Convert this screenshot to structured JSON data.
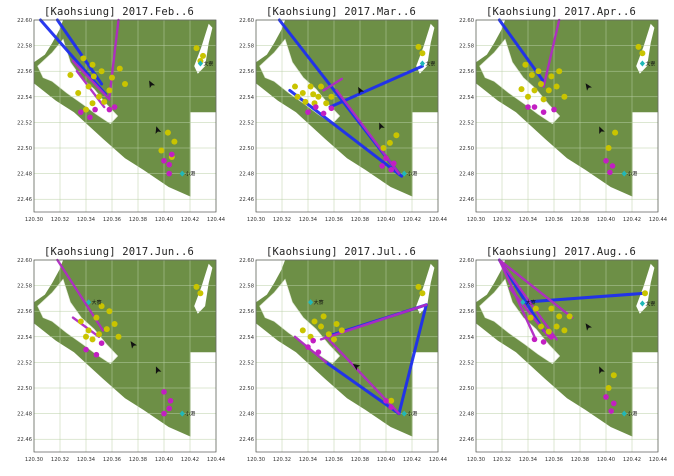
{
  "figure": {
    "city": "Kaohsiung",
    "colors": {
      "land": "#6d8f46",
      "land_light": "#7c9d55",
      "water": "#ffffff",
      "grid": "#b9cfa6",
      "frame": "#555555",
      "station_dot": "#c9c400",
      "station_dot_magenta": "#c21fc2",
      "line_blue": "#1e2ff0",
      "line_magenta": "#b02bc4",
      "site_marker": "#21b8b8",
      "arrow": "#111111"
    },
    "site_labels": [
      "大寮",
      "大寮",
      "小港"
    ]
  },
  "chart_data": [
    {
      "type": "scatter",
      "title": "[Kaohsiung] 2017.Feb..6",
      "xlim": [
        120.3,
        120.44
      ],
      "ylim": [
        22.45,
        22.6
      ],
      "xticks": [
        "120.30",
        "120.32",
        "120.34",
        "120.36",
        "120.38",
        "120.40",
        "120.42",
        "120.44"
      ],
      "yticks": [
        "22.60",
        "22.58",
        "22.56",
        "22.54",
        "22.52",
        "22.50",
        "22.48",
        "22.46"
      ],
      "grid": true,
      "lines": [
        {
          "color": "blue",
          "from": [
            120.305,
            22.6
          ],
          "to": [
            120.355,
            22.542
          ]
        },
        {
          "color": "blue",
          "from": [
            120.318,
            22.6
          ],
          "to": [
            120.352,
            22.55
          ]
        },
        {
          "color": "magenta",
          "from": [
            120.365,
            22.6
          ],
          "to": [
            120.358,
            22.54
          ]
        },
        {
          "color": "magenta",
          "from": [
            120.33,
            22.568
          ],
          "to": [
            120.358,
            22.538
          ]
        },
        {
          "color": "magenta",
          "from": [
            120.333,
            22.56
          ],
          "to": [
            120.354,
            22.532
          ]
        }
      ],
      "points_yellow": [
        [
          120.338,
          22.57
        ],
        [
          120.345,
          22.565
        ],
        [
          120.352,
          22.56
        ],
        [
          120.36,
          22.555
        ],
        [
          120.366,
          22.562
        ],
        [
          120.37,
          22.55
        ],
        [
          120.358,
          22.545
        ],
        [
          120.35,
          22.54
        ],
        [
          120.345,
          22.535
        ],
        [
          120.34,
          22.53
        ],
        [
          120.334,
          22.543
        ],
        [
          120.328,
          22.557
        ],
        [
          120.342,
          22.548
        ],
        [
          120.346,
          22.556
        ],
        [
          120.354,
          22.536
        ],
        [
          120.403,
          22.512
        ],
        [
          120.408,
          22.505
        ],
        [
          120.398,
          22.498
        ],
        [
          120.406,
          22.493
        ],
        [
          120.43,
          22.572
        ],
        [
          120.425,
          22.578
        ],
        [
          120.428,
          22.568
        ]
      ],
      "points_magenta": [
        [
          120.347,
          22.53
        ],
        [
          120.358,
          22.53
        ],
        [
          120.362,
          22.532
        ],
        [
          120.343,
          22.524
        ],
        [
          120.336,
          22.528
        ],
        [
          120.4,
          22.49
        ],
        [
          120.404,
          22.487
        ],
        [
          120.406,
          22.495
        ],
        [
          120.404,
          22.48
        ]
      ],
      "arrows": [
        [
          120.395,
          22.514,
          0.4
        ],
        [
          120.39,
          22.55,
          0.2
        ]
      ],
      "sites": [
        [
          120.428,
          22.566,
          "大寮"
        ],
        [
          120.414,
          22.48,
          "小港"
        ]
      ]
    },
    {
      "type": "scatter",
      "title": "[Kaohsiung] 2017.Mar..6",
      "xlim": [
        120.3,
        120.44
      ],
      "ylim": [
        22.45,
        22.6
      ],
      "xticks": [
        "120.30",
        "120.32",
        "120.34",
        "120.36",
        "120.38",
        "120.40",
        "120.42",
        "120.44"
      ],
      "yticks": [
        "22.60",
        "22.58",
        "22.56",
        "22.54",
        "22.52",
        "22.50",
        "22.48",
        "22.46"
      ],
      "grid": true,
      "lines": [
        {
          "color": "blue",
          "from": [
            120.428,
            22.564
          ],
          "to": [
            120.357,
            22.532
          ]
        },
        {
          "color": "blue",
          "from": [
            120.318,
            22.6
          ],
          "to": [
            120.41,
            22.48
          ]
        },
        {
          "color": "blue",
          "from": [
            120.326,
            22.545
          ],
          "to": [
            120.412,
            22.478
          ]
        },
        {
          "color": "magenta",
          "from": [
            120.362,
            22.545
          ],
          "to": [
            120.41,
            22.48
          ]
        },
        {
          "color": "magenta",
          "from": [
            120.352,
            22.545
          ],
          "to": [
            120.366,
            22.554
          ]
        }
      ],
      "points_yellow": [
        [
          120.336,
          22.543
        ],
        [
          120.342,
          22.548
        ],
        [
          120.348,
          22.54
        ],
        [
          120.354,
          22.535
        ],
        [
          120.345,
          22.535
        ],
        [
          120.338,
          22.536
        ],
        [
          120.332,
          22.54
        ],
        [
          120.35,
          22.548
        ],
        [
          120.358,
          22.54
        ],
        [
          120.33,
          22.548
        ],
        [
          120.344,
          22.542
        ],
        [
          120.408,
          22.51
        ],
        [
          120.403,
          22.504
        ],
        [
          120.398,
          22.5
        ],
        [
          120.428,
          22.574
        ],
        [
          120.425,
          22.579
        ]
      ],
      "points_magenta": [
        [
          120.346,
          22.532
        ],
        [
          120.352,
          22.527
        ],
        [
          120.34,
          22.528
        ],
        [
          120.358,
          22.531
        ],
        [
          120.4,
          22.492
        ],
        [
          120.406,
          22.488
        ],
        [
          120.404,
          22.483
        ],
        [
          120.397,
          22.486
        ]
      ],
      "arrows": [
        [
          120.396,
          22.517,
          0.3
        ],
        [
          120.38,
          22.545,
          0.2
        ]
      ],
      "sites": [
        [
          120.428,
          22.566,
          "大寮"
        ],
        [
          120.414,
          22.48,
          "小港"
        ]
      ]
    },
    {
      "type": "scatter",
      "title": "[Kaohsiung] 2017.Apr..6",
      "xlim": [
        120.3,
        120.44
      ],
      "ylim": [
        22.45,
        22.6
      ],
      "xticks": [
        "120.30",
        "120.32",
        "120.34",
        "120.36",
        "120.38",
        "120.40",
        "120.42",
        "120.44"
      ],
      "yticks": [
        "22.60",
        "22.58",
        "22.56",
        "22.54",
        "22.52",
        "22.50",
        "22.48",
        "22.46"
      ],
      "grid": true,
      "lines": [
        {
          "color": "blue",
          "from": [
            120.318,
            22.6
          ],
          "to": [
            120.352,
            22.552
          ]
        },
        {
          "color": "magenta",
          "from": [
            120.364,
            22.6
          ],
          "to": [
            120.352,
            22.548
          ]
        }
      ],
      "points_yellow": [
        [
          120.338,
          22.565
        ],
        [
          120.343,
          22.557
        ],
        [
          120.35,
          22.55
        ],
        [
          120.356,
          22.545
        ],
        [
          120.362,
          22.548
        ],
        [
          120.368,
          22.54
        ],
        [
          120.345,
          22.545
        ],
        [
          120.34,
          22.54
        ],
        [
          120.335,
          22.546
        ],
        [
          120.352,
          22.538
        ],
        [
          120.358,
          22.556
        ],
        [
          120.364,
          22.56
        ],
        [
          120.348,
          22.56
        ],
        [
          120.407,
          22.512
        ],
        [
          120.402,
          22.5
        ],
        [
          120.428,
          22.574
        ],
        [
          120.425,
          22.579
        ]
      ],
      "points_magenta": [
        [
          120.345,
          22.532
        ],
        [
          120.352,
          22.528
        ],
        [
          120.36,
          22.53
        ],
        [
          120.34,
          22.532
        ],
        [
          120.4,
          22.49
        ],
        [
          120.405,
          22.486
        ],
        [
          120.403,
          22.481
        ]
      ],
      "arrows": [
        [
          120.396,
          22.514,
          0.3
        ],
        [
          120.386,
          22.548,
          0.1
        ]
      ],
      "sites": [
        [
          120.428,
          22.566,
          "大寮"
        ],
        [
          120.414,
          22.48,
          "小港"
        ]
      ]
    },
    {
      "type": "scatter",
      "title": "[Kaohsiung] 2017.Jun..6",
      "xlim": [
        120.3,
        120.44
      ],
      "ylim": [
        22.45,
        22.6
      ],
      "xticks": [
        "120.30",
        "120.32",
        "120.34",
        "120.36",
        "120.38",
        "120.40",
        "120.42",
        "120.44"
      ],
      "yticks": [
        "22.60",
        "22.58",
        "22.56",
        "22.54",
        "22.52",
        "22.50",
        "22.48",
        "22.46"
      ],
      "grid": true,
      "lines": [
        {
          "color": "magenta",
          "from": [
            120.318,
            22.6
          ],
          "to": [
            120.353,
            22.545
          ]
        },
        {
          "color": "magenta",
          "from": [
            120.33,
            22.555
          ],
          "to": [
            120.35,
            22.54
          ]
        }
      ],
      "points_yellow": [
        [
          120.336,
          22.552
        ],
        [
          120.342,
          22.545
        ],
        [
          120.35,
          22.542
        ],
        [
          120.356,
          22.546
        ],
        [
          120.362,
          22.55
        ],
        [
          120.345,
          22.538
        ],
        [
          120.34,
          22.54
        ],
        [
          120.365,
          22.54
        ],
        [
          120.348,
          22.555
        ],
        [
          120.358,
          22.56
        ],
        [
          120.352,
          22.564
        ],
        [
          120.428,
          22.574
        ],
        [
          120.425,
          22.579
        ]
      ],
      "points_magenta": [
        [
          120.34,
          22.53
        ],
        [
          120.348,
          22.526
        ],
        [
          120.352,
          22.535
        ],
        [
          120.4,
          22.497
        ],
        [
          120.405,
          22.49
        ],
        [
          120.404,
          22.484
        ],
        [
          120.4,
          22.48
        ]
      ],
      "arrows": [
        [
          120.395,
          22.514,
          0.3
        ],
        [
          120.376,
          22.534,
          0.1
        ]
      ],
      "sites": [
        [
          120.342,
          22.567,
          "大寮"
        ],
        [
          120.414,
          22.48,
          "小港"
        ]
      ]
    },
    {
      "type": "scatter",
      "title": "[Kaohsiung] 2017.Jul..6",
      "xlim": [
        120.3,
        120.44
      ],
      "ylim": [
        22.45,
        22.6
      ],
      "xticks": [
        "120.30",
        "120.32",
        "120.34",
        "120.36",
        "120.38",
        "120.40",
        "120.42",
        "120.44"
      ],
      "yticks": [
        "22.60",
        "22.58",
        "22.56",
        "22.54",
        "22.52",
        "22.50",
        "22.48",
        "22.46"
      ],
      "grid": true,
      "lines": [
        {
          "color": "blue",
          "from": [
            120.431,
            22.565
          ],
          "to": [
            120.354,
            22.54
          ]
        },
        {
          "color": "blue",
          "from": [
            120.431,
            22.565
          ],
          "to": [
            120.41,
            22.48
          ]
        },
        {
          "color": "blue",
          "from": [
            120.354,
            22.52
          ],
          "to": [
            120.41,
            22.48
          ]
        },
        {
          "color": "magenta",
          "from": [
            120.431,
            22.565
          ],
          "to": [
            120.35,
            22.538
          ]
        },
        {
          "color": "magenta",
          "from": [
            120.33,
            22.54
          ],
          "to": [
            120.354,
            22.52
          ]
        },
        {
          "color": "magenta",
          "from": [
            120.354,
            22.54
          ],
          "to": [
            120.41,
            22.48
          ]
        }
      ],
      "points_yellow": [
        [
          120.336,
          22.545
        ],
        [
          120.342,
          22.54
        ],
        [
          120.35,
          22.548
        ],
        [
          120.356,
          22.542
        ],
        [
          120.362,
          22.55
        ],
        [
          120.36,
          22.538
        ],
        [
          120.345,
          22.552
        ],
        [
          120.352,
          22.556
        ],
        [
          120.366,
          22.545
        ],
        [
          120.404,
          22.49
        ],
        [
          120.428,
          22.574
        ],
        [
          120.425,
          22.579
        ]
      ],
      "points_magenta": [
        [
          120.34,
          22.532
        ],
        [
          120.348,
          22.528
        ],
        [
          120.344,
          22.537
        ],
        [
          120.4,
          22.49
        ],
        [
          120.404,
          22.485
        ]
      ],
      "arrows": [
        [
          120.377,
          22.517,
          -0.25
        ]
      ],
      "sites": [
        [
          120.342,
          22.567,
          "大寮"
        ],
        [
          120.414,
          22.48,
          "小港"
        ]
      ]
    },
    {
      "type": "scatter",
      "title": "[Kaohsiung] 2017.Aug..6",
      "xlim": [
        120.3,
        120.44
      ],
      "ylim": [
        22.45,
        22.6
      ],
      "xticks": [
        "120.30",
        "120.32",
        "120.34",
        "120.36",
        "120.38",
        "120.40",
        "120.42",
        "120.44"
      ],
      "yticks": [
        "22.60",
        "22.58",
        "22.56",
        "22.54",
        "22.52",
        "22.50",
        "22.48",
        "22.46"
      ],
      "grid": true,
      "lines": [
        {
          "color": "blue",
          "from": [
            120.318,
            22.6
          ],
          "to": [
            120.352,
            22.545
          ]
        },
        {
          "color": "blue",
          "from": [
            120.336,
            22.567
          ],
          "to": [
            120.43,
            22.574
          ]
        },
        {
          "color": "magenta",
          "from": [
            120.318,
            22.6
          ],
          "to": [
            120.345,
            22.54
          ]
        },
        {
          "color": "magenta",
          "from": [
            120.318,
            22.6
          ],
          "to": [
            120.362,
            22.538
          ]
        },
        {
          "color": "magenta",
          "from": [
            120.318,
            22.6
          ],
          "to": [
            120.374,
            22.555
          ]
        },
        {
          "color": "magenta",
          "from": [
            120.326,
            22.578
          ],
          "to": [
            120.356,
            22.54
          ]
        }
      ],
      "points_yellow": [
        [
          120.342,
          22.555
        ],
        [
          120.35,
          22.548
        ],
        [
          120.356,
          22.544
        ],
        [
          120.362,
          22.548
        ],
        [
          120.368,
          22.545
        ],
        [
          120.364,
          22.556
        ],
        [
          120.372,
          22.556
        ],
        [
          120.346,
          22.562
        ],
        [
          120.358,
          22.562
        ],
        [
          120.406,
          22.51
        ],
        [
          120.402,
          22.5
        ],
        [
          120.43,
          22.574
        ]
      ],
      "points_magenta": [
        [
          120.345,
          22.538
        ],
        [
          120.352,
          22.536
        ],
        [
          120.358,
          22.54
        ],
        [
          120.4,
          22.493
        ],
        [
          120.406,
          22.488
        ],
        [
          120.404,
          22.482
        ]
      ],
      "arrows": [
        [
          120.396,
          22.514,
          0.3
        ],
        [
          120.386,
          22.548,
          0.1
        ]
      ],
      "sites": [
        [
          120.336,
          22.567,
          "大寮"
        ],
        [
          120.428,
          22.566,
          "大寮"
        ],
        [
          120.414,
          22.48,
          "小港"
        ]
      ]
    }
  ]
}
